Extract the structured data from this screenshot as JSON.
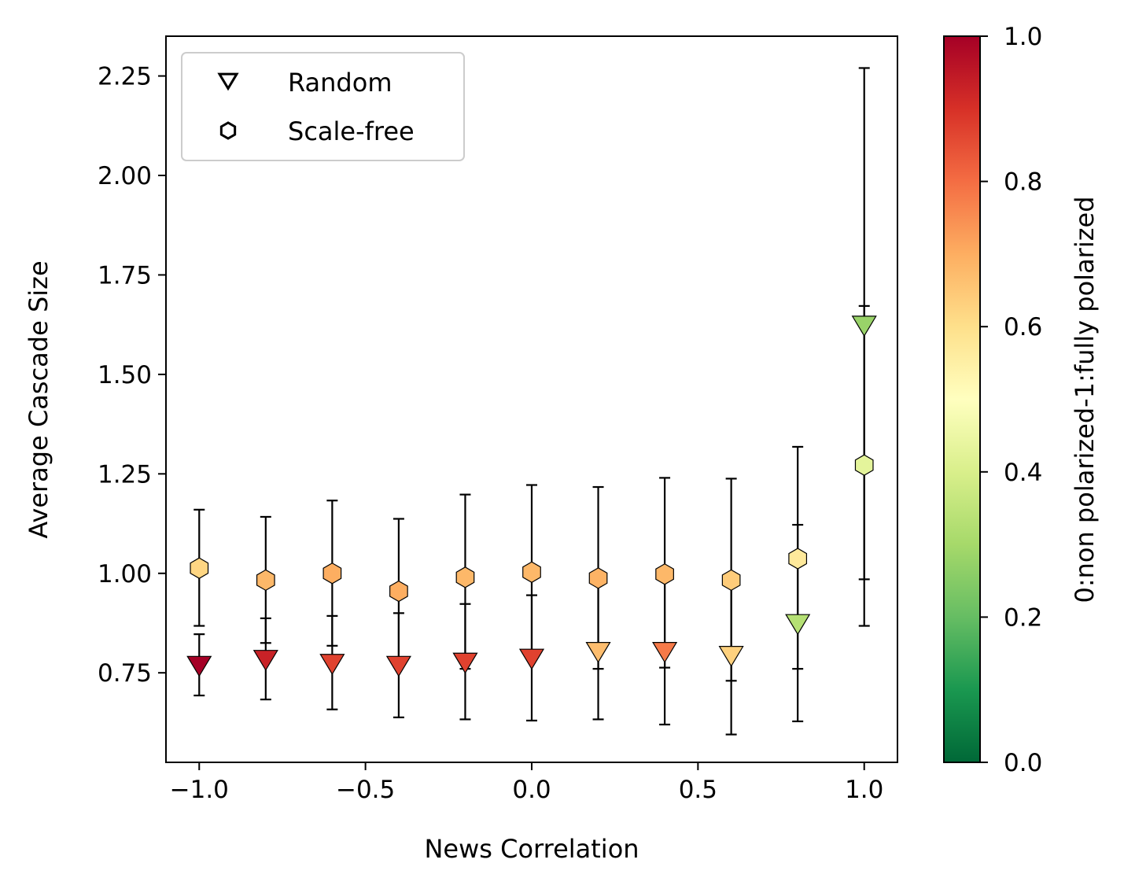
{
  "chart_data": {
    "type": "scatter",
    "xlabel": "News Correlation",
    "ylabel": "Average Cascade Size",
    "xlim": [
      -1.1,
      1.1
    ],
    "ylim": [
      0.525,
      2.35
    ],
    "xticks": [
      -1.0,
      -0.5,
      0.0,
      0.5,
      1.0
    ],
    "xtick_labels": [
      "−1.0",
      "−0.5",
      "0.0",
      "0.5",
      "1.0"
    ],
    "yticks": [
      0.75,
      1.0,
      1.25,
      1.5,
      1.75,
      2.0,
      2.25
    ],
    "ytick_labels": [
      "0.75",
      "1.00",
      "1.25",
      "1.50",
      "1.75",
      "2.00",
      "2.25"
    ],
    "grid": false,
    "legend_position": "top-left",
    "colorbar": {
      "label": "0:non polarized-1:fully polarized",
      "range": [
        0.0,
        1.0
      ],
      "ticks": [
        0.0,
        0.2,
        0.4,
        0.6,
        0.8,
        1.0
      ],
      "tick_labels": [
        "0.0",
        "0.2",
        "0.4",
        "0.6",
        "0.8",
        "1.0"
      ],
      "colormap": "RdYlGn_r",
      "stops": [
        "#006837",
        "#1a9850",
        "#66bd63",
        "#a6d96a",
        "#d9ef8b",
        "#ffffbf",
        "#fee08b",
        "#fdae61",
        "#f46d43",
        "#d73027",
        "#a50026"
      ]
    },
    "series": [
      {
        "name": "Random",
        "marker": "triangle-down",
        "x": [
          -1.0,
          -0.8,
          -0.6,
          -0.4,
          -0.2,
          0.0,
          0.2,
          0.4,
          0.6,
          0.8,
          1.0
        ],
        "y": [
          0.77,
          0.785,
          0.775,
          0.77,
          0.778,
          0.788,
          0.805,
          0.805,
          0.795,
          0.875,
          1.625
        ],
        "yerr_low": [
          0.693,
          0.683,
          0.658,
          0.638,
          0.633,
          0.63,
          0.633,
          0.62,
          0.595,
          0.628,
          0.985
        ],
        "yerr_high": [
          0.847,
          0.887,
          0.893,
          0.9,
          0.923,
          0.945,
          0.978,
          0.99,
          0.995,
          1.122,
          2.27
        ],
        "polarization": [
          1.0,
          0.93,
          0.87,
          0.87,
          0.87,
          0.87,
          0.67,
          0.78,
          0.63,
          0.33,
          0.28
        ]
      },
      {
        "name": "Scale-free",
        "marker": "hexagon",
        "x": [
          -1.0,
          -0.8,
          -0.6,
          -0.4,
          -0.2,
          0.0,
          0.2,
          0.4,
          0.6,
          0.8,
          1.0
        ],
        "y": [
          1.013,
          0.983,
          1.0,
          0.955,
          0.99,
          1.003,
          0.988,
          0.998,
          0.983,
          1.037,
          1.272
        ],
        "yerr_low": [
          0.868,
          0.825,
          0.818,
          0.773,
          0.76,
          0.785,
          0.76,
          0.763,
          0.73,
          0.76,
          0.868
        ],
        "yerr_high": [
          1.16,
          1.142,
          1.183,
          1.137,
          1.198,
          1.222,
          1.217,
          1.24,
          1.238,
          1.318,
          1.672
        ],
        "polarization": [
          0.62,
          0.68,
          0.7,
          0.7,
          0.68,
          0.68,
          0.69,
          0.68,
          0.64,
          0.57,
          0.43
        ]
      }
    ]
  }
}
